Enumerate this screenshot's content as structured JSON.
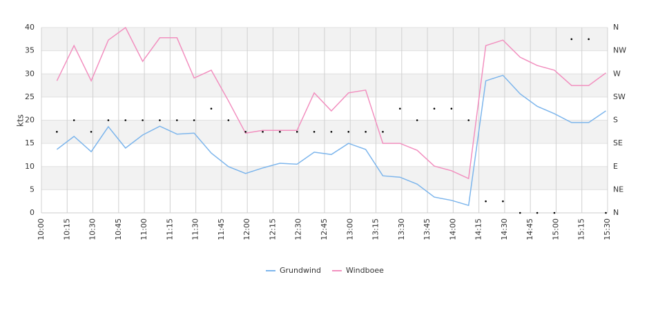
{
  "chart_data": {
    "type": "line",
    "ylabel": "kts",
    "x": [
      609,
      619,
      629,
      639,
      649,
      659,
      669,
      679,
      689,
      699,
      709,
      719,
      729,
      739,
      749,
      759,
      769,
      779,
      789,
      799,
      809,
      819,
      829,
      839,
      849,
      859,
      869,
      879,
      889,
      899,
      909,
      919,
      929
    ],
    "xlim": [
      600,
      930
    ],
    "xticks": [
      {
        "value": 600,
        "label": "10:00"
      },
      {
        "value": 615,
        "label": "10:15"
      },
      {
        "value": 630,
        "label": "10:30"
      },
      {
        "value": 645,
        "label": "10:45"
      },
      {
        "value": 660,
        "label": "11:00"
      },
      {
        "value": 675,
        "label": "11:15"
      },
      {
        "value": 690,
        "label": "11:30"
      },
      {
        "value": 705,
        "label": "11:45"
      },
      {
        "value": 720,
        "label": "12:00"
      },
      {
        "value": 735,
        "label": "12:15"
      },
      {
        "value": 750,
        "label": "12:30"
      },
      {
        "value": 765,
        "label": "12:45"
      },
      {
        "value": 780,
        "label": "13:00"
      },
      {
        "value": 795,
        "label": "13:15"
      },
      {
        "value": 810,
        "label": "13:30"
      },
      {
        "value": 825,
        "label": "13:45"
      },
      {
        "value": 840,
        "label": "14:00"
      },
      {
        "value": 855,
        "label": "14:15"
      },
      {
        "value": 870,
        "label": "14:30"
      },
      {
        "value": 885,
        "label": "14:45"
      },
      {
        "value": 900,
        "label": "15:00"
      },
      {
        "value": 915,
        "label": "15:15"
      },
      {
        "value": 930,
        "label": "15:30"
      }
    ],
    "ylim": [
      0,
      40
    ],
    "yticks": [
      0,
      5,
      10,
      15,
      20,
      25,
      30,
      35,
      40
    ],
    "y2lim": [
      0,
      360
    ],
    "y2ticks": [
      {
        "value": 0,
        "label": "N"
      },
      {
        "value": 45,
        "label": "NE"
      },
      {
        "value": 90,
        "label": "E"
      },
      {
        "value": 135,
        "label": "SE"
      },
      {
        "value": 180,
        "label": "S"
      },
      {
        "value": 225,
        "label": "SW"
      },
      {
        "value": 270,
        "label": "W"
      },
      {
        "value": 315,
        "label": "NW"
      },
      {
        "value": 360,
        "label": "N"
      }
    ],
    "grid": true,
    "legend": "bottom",
    "series": [
      {
        "name": "Grundwind",
        "color": "#7cb5ec",
        "values": [
          13.7,
          16.5,
          13.2,
          18.6,
          14,
          16.8,
          18.7,
          17,
          17.2,
          12.9,
          10,
          8.5,
          9.7,
          10.7,
          10.5,
          13.1,
          12.6,
          15,
          13.7,
          8,
          7.7,
          6.2,
          3.4,
          2.7,
          1.6,
          28.5,
          29.7,
          25.7,
          23,
          21.4,
          19.5,
          19.5,
          22
        ]
      },
      {
        "name": "Windboee",
        "color": "#f28fbf",
        "values": [
          28.5,
          36.1,
          28.5,
          37.3,
          40,
          32.7,
          37.8,
          37.8,
          29.1,
          30.8,
          24.2,
          17.2,
          17.8,
          17.8,
          17.8,
          25.9,
          22,
          25.9,
          26.5,
          15,
          15,
          13.5,
          10.1,
          9.1,
          7.4,
          36.1,
          37.3,
          33.6,
          31.8,
          30.8,
          27.5,
          27.5,
          30.2
        ]
      },
      {
        "color": "#000000",
        "axis": "y2",
        "marker": "dot",
        "values": [
          157.5,
          180,
          157.5,
          180,
          180,
          180,
          180,
          180,
          180,
          202.5,
          180,
          157.5,
          157.5,
          157.5,
          157.5,
          157.5,
          157.5,
          157.5,
          157.5,
          157.5,
          202.5,
          180,
          202.5,
          202.5,
          180,
          22.5,
          22.5,
          0,
          0,
          0,
          337.5,
          337.5,
          0
        ]
      }
    ]
  }
}
